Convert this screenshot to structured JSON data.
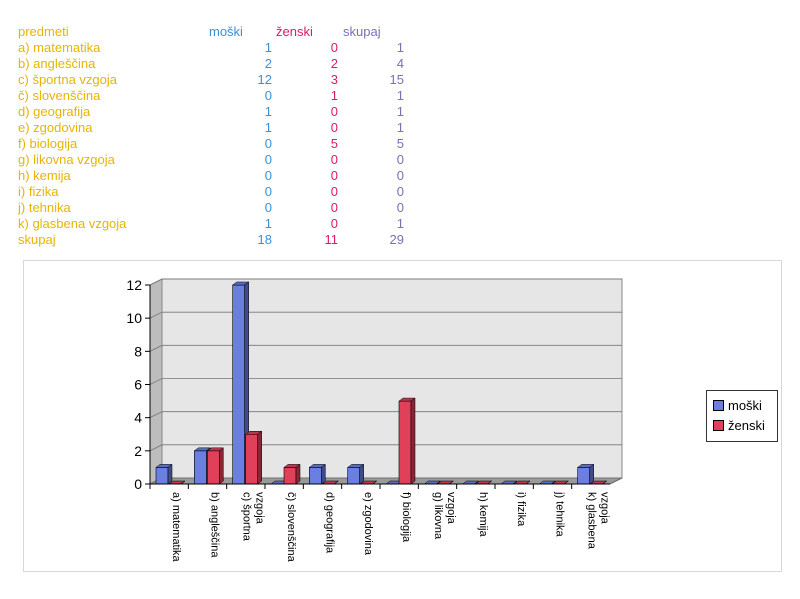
{
  "table": {
    "headers": {
      "subject": "predmeti",
      "m": "moški",
      "z": "ženski",
      "s": "skupaj"
    },
    "rows": [
      {
        "subject": "a) matematika",
        "m": "1",
        "z": "0",
        "s": "1"
      },
      {
        "subject": "b) angleščina",
        "m": "2",
        "z": "2",
        "s": "4"
      },
      {
        "subject": "c) športna vzgoja",
        "m": "12",
        "z": "3",
        "s": "15"
      },
      {
        "subject": "č) slovenščina",
        "m": "0",
        "z": "1",
        "s": "1"
      },
      {
        "subject": "d) geografija",
        "m": "1",
        "z": "0",
        "s": "1"
      },
      {
        "subject": "e) zgodovina",
        "m": "1",
        "z": "0",
        "s": "1"
      },
      {
        "subject": "f) biologija",
        "m": "0",
        "z": "5",
        "s": "5"
      },
      {
        "subject": "g) likovna vzgoja",
        "m": "0",
        "z": "0",
        "s": "0"
      },
      {
        "subject": "h) kemija",
        "m": "0",
        "z": "0",
        "s": "0"
      },
      {
        "subject": "i) fizika",
        "m": "0",
        "z": "0",
        "s": "0"
      },
      {
        "subject": "j) tehnika",
        "m": "0",
        "z": "0",
        "s": "0"
      },
      {
        "subject": "k) glasbena vzgoja",
        "m": "1",
        "z": "0",
        "s": "1"
      }
    ],
    "total": {
      "subject": "skupaj",
      "m": "18",
      "z": "11",
      "s": "29"
    }
  },
  "chart_data": {
    "type": "bar",
    "title": "",
    "xlabel": "",
    "ylabel": "",
    "categories": [
      "a) matematika",
      "b) angleščina",
      "c) športna vzgoja",
      "č) slovenščina",
      "d) geografija",
      "e) zgodovina",
      "f) biologija",
      "g) likovna vzgoja",
      "h) kemija",
      "i) fizika",
      "j) tehnika",
      "k) glasbena vzgoja"
    ],
    "category_label_lines": [
      [
        "a) matematika"
      ],
      [
        "b) angleščina"
      ],
      [
        "c) športna",
        "vzgoja"
      ],
      [
        "č) slovenščina"
      ],
      [
        "d) geografija"
      ],
      [
        "e) zgodovina"
      ],
      [
        "f) biologija"
      ],
      [
        "g) likovna",
        "vzgoja"
      ],
      [
        "h) kemija"
      ],
      [
        "i) fizika"
      ],
      [
        "j) tehnika"
      ],
      [
        "k) glasbena",
        "vzgoja"
      ]
    ],
    "series": [
      {
        "name": "moški",
        "values": [
          1,
          2,
          12,
          0,
          1,
          1,
          0,
          0,
          0,
          0,
          0,
          1
        ],
        "color": "#6a7fe0"
      },
      {
        "name": "ženski",
        "values": [
          0,
          2,
          3,
          1,
          0,
          0,
          5,
          0,
          0,
          0,
          0,
          0
        ],
        "color": "#e0405a"
      }
    ],
    "y_ticks": [
      "0",
      "2",
      "4",
      "6",
      "8",
      "10",
      "12"
    ],
    "ylim": [
      0,
      12
    ],
    "grid": true,
    "legend_position": "right"
  }
}
